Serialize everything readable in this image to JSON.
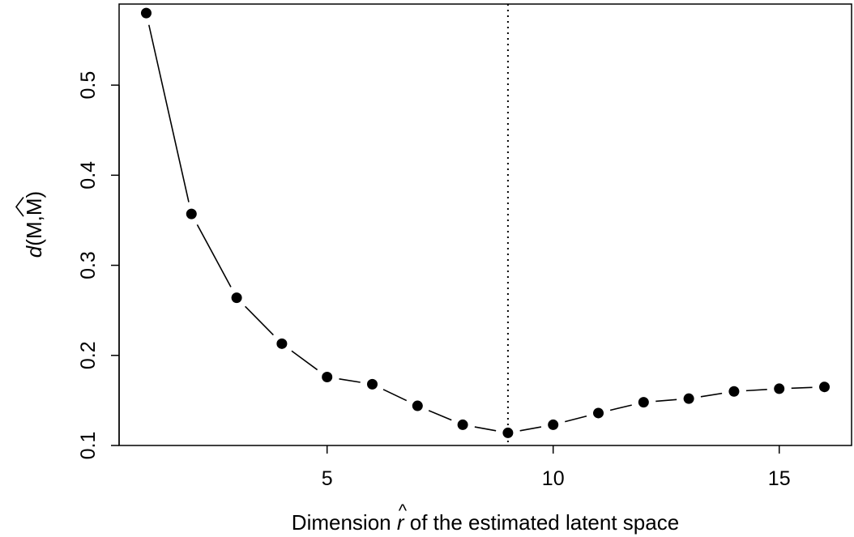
{
  "chart_data": {
    "type": "line",
    "title": "",
    "xlabel": "Dimension r of the estimated latent space",
    "xlabel_parts": {
      "before": "Dimension ",
      "symbol": "r",
      "symbol_accent": "^",
      "after": " of the estimated latent space"
    },
    "ylabel_parts": {
      "func": "d",
      "open": "(",
      "arg1": "M",
      "sep": ",",
      "arg2": "M",
      "arg2_accent": "hat",
      "close": ")"
    },
    "xlim": [
      0.4,
      16.6
    ],
    "ylim": [
      0.1,
      0.59
    ],
    "x_ticks": [
      5,
      10,
      15
    ],
    "x_tick_labels": [
      "5",
      "10",
      "15"
    ],
    "y_ticks": [
      0.1,
      0.2,
      0.3,
      0.4,
      0.5
    ],
    "y_tick_labels": [
      "0.1",
      "0.2",
      "0.3",
      "0.4",
      "0.5"
    ],
    "grid": false,
    "legend": "none",
    "vline": {
      "x": 9,
      "style": "dotted"
    },
    "series": [
      {
        "x": [
          1,
          2,
          3,
          4,
          5,
          6,
          7,
          8,
          9,
          10,
          11,
          12,
          13,
          14,
          15,
          16
        ],
        "values": [
          0.58,
          0.357,
          0.264,
          0.213,
          0.176,
          0.168,
          0.144,
          0.123,
          0.114,
          0.123,
          0.136,
          0.148,
          0.152,
          0.16,
          0.163,
          0.165
        ]
      }
    ],
    "colors": {
      "line": "#000000",
      "point": "#000000",
      "axis": "#000000",
      "background": "#ffffff"
    }
  }
}
